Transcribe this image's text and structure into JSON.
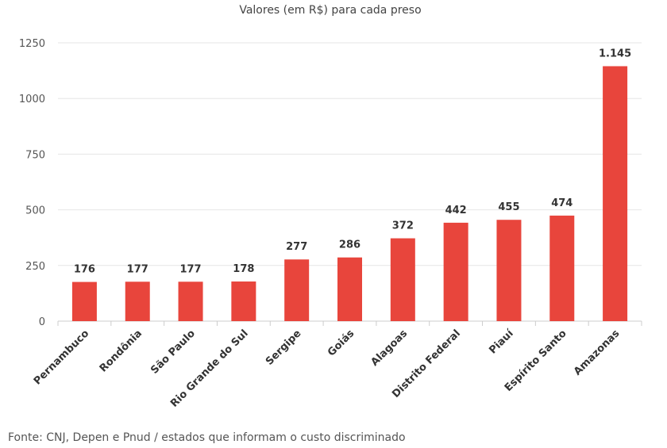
{
  "chart_data": {
    "type": "bar",
    "title": "Valores (em R$) para cada preso",
    "categories": [
      "Pernambuco",
      "Rondônia",
      "São Paulo",
      "Rio Grande do Sul",
      "Sergipe",
      "Goiás",
      "Alagoas",
      "Distrito Federal",
      "Piauí",
      "Espírito Santo",
      "Amazonas"
    ],
    "values": [
      176,
      177,
      177,
      178,
      277,
      286,
      372,
      442,
      455,
      474,
      1145
    ],
    "data_labels": [
      "176",
      "177",
      "177",
      "178",
      "277",
      "286",
      "372",
      "442",
      "455",
      "474",
      "1.145"
    ],
    "yticks": [
      "0",
      "250",
      "500",
      "750",
      "1000",
      "1250"
    ],
    "ylim": [
      0,
      1250
    ],
    "grid": true,
    "bar_color": "#e8453c",
    "source": "Fonte: CNJ, Depen e Pnud / estados que informam o custo discriminado"
  }
}
